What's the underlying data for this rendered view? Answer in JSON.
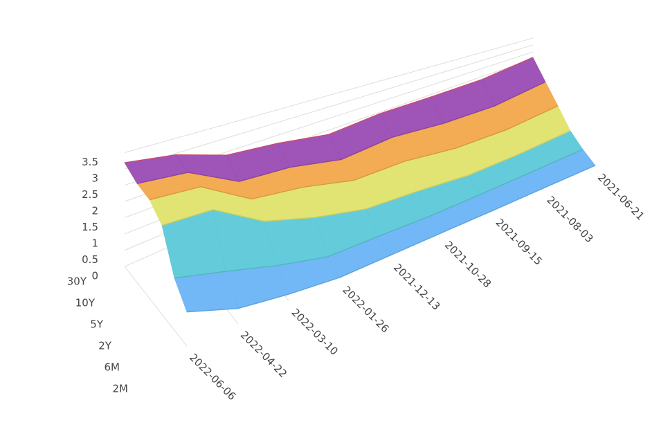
{
  "chart_data": {
    "type": "surface",
    "x": [
      "2021-06-21",
      "2021-08-03",
      "2021-09-15",
      "2021-10-28",
      "2021-12-13",
      "2022-01-26",
      "2022-03-10",
      "2022-04-22",
      "2022-06-06"
    ],
    "series": [
      {
        "name": "2M",
        "color": "#6ab4f5",
        "values": [
          0.05,
          0.05,
          0.04,
          0.05,
          0.05,
          0.05,
          0.25,
          0.5,
          1.05
        ]
      },
      {
        "name": "6M",
        "color": "#5cc8d8",
        "values": [
          0.06,
          0.05,
          0.05,
          0.07,
          0.17,
          0.23,
          0.7,
          1.2,
          1.6
        ]
      },
      {
        "name": "2Y",
        "color": "#dfe36c",
        "values": [
          0.25,
          0.17,
          0.21,
          0.5,
          0.66,
          1.15,
          1.72,
          2.72,
          2.73
        ]
      },
      {
        "name": "5Y",
        "color": "#f2a84a",
        "values": [
          0.9,
          0.7,
          0.82,
          1.18,
          1.21,
          1.71,
          1.95,
          2.95,
          3.03
        ]
      },
      {
        "name": "10Y",
        "color": "#9a4cb4",
        "values": [
          1.49,
          1.17,
          1.3,
          1.57,
          1.42,
          1.87,
          2.01,
          2.9,
          3.04
        ]
      },
      {
        "name": "30Y",
        "color": "#e0527e",
        "values": [
          2.1,
          1.82,
          1.86,
          1.93,
          1.81,
          2.18,
          2.38,
          2.95,
          3.19
        ]
      }
    ],
    "zlim": [
      0,
      3.6
    ],
    "zticks": [
      0,
      0.5,
      1,
      1.5,
      2,
      2.5,
      3,
      3.5
    ],
    "grid": true
  }
}
